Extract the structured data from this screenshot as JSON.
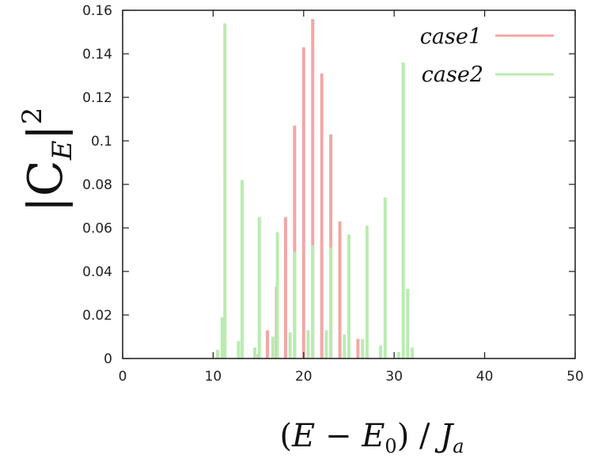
{
  "chart_data": {
    "type": "bar",
    "xlabel": "(E − E0) / Ja",
    "ylabel": "|CE|2",
    "xlim": [
      0,
      50
    ],
    "ylim": [
      0,
      0.16
    ],
    "x_ticks": [
      0,
      10,
      20,
      30,
      40,
      50
    ],
    "y_ticks": [
      "0",
      "0.02",
      "0.04",
      "0.06",
      "0.08",
      "0.1",
      "0.12",
      "0.14",
      "0.16"
    ],
    "grid": false,
    "legend_position": "top-right",
    "series": [
      {
        "name": "case1",
        "color": "#f4a6a6",
        "points": [
          {
            "x": 15,
            "y": 0.002
          },
          {
            "x": 16,
            "y": 0.013
          },
          {
            "x": 17,
            "y": 0.033
          },
          {
            "x": 18,
            "y": 0.065
          },
          {
            "x": 19,
            "y": 0.107
          },
          {
            "x": 20,
            "y": 0.143
          },
          {
            "x": 21,
            "y": 0.156
          },
          {
            "x": 22,
            "y": 0.131
          },
          {
            "x": 23,
            "y": 0.103
          },
          {
            "x": 24,
            "y": 0.063
          },
          {
            "x": 25,
            "y": 0.03
          },
          {
            "x": 26,
            "y": 0.009
          },
          {
            "x": 27,
            "y": 0.002
          }
        ]
      },
      {
        "name": "case2",
        "color": "#b9ecb0",
        "points": [
          {
            "x": 10.5,
            "y": 0.004
          },
          {
            "x": 11,
            "y": 0.019
          },
          {
            "x": 11.3,
            "y": 0.154
          },
          {
            "x": 12.8,
            "y": 0.008
          },
          {
            "x": 13.2,
            "y": 0.082
          },
          {
            "x": 14.6,
            "y": 0.005
          },
          {
            "x": 15.1,
            "y": 0.065
          },
          {
            "x": 16.6,
            "y": 0.01
          },
          {
            "x": 17.1,
            "y": 0.058
          },
          {
            "x": 18.5,
            "y": 0.012
          },
          {
            "x": 19,
            "y": 0.049
          },
          {
            "x": 20.5,
            "y": 0.013
          },
          {
            "x": 21,
            "y": 0.052
          },
          {
            "x": 22.5,
            "y": 0.013
          },
          {
            "x": 23,
            "y": 0.051
          },
          {
            "x": 24.5,
            "y": 0.011
          },
          {
            "x": 25,
            "y": 0.057
          },
          {
            "x": 26.5,
            "y": 0.009
          },
          {
            "x": 27,
            "y": 0.061
          },
          {
            "x": 28.5,
            "y": 0.006
          },
          {
            "x": 29,
            "y": 0.074
          },
          {
            "x": 30.5,
            "y": 0.003
          },
          {
            "x": 31,
            "y": 0.136
          },
          {
            "x": 31.5,
            "y": 0.032
          },
          {
            "x": 32,
            "y": 0.005
          }
        ]
      }
    ]
  }
}
